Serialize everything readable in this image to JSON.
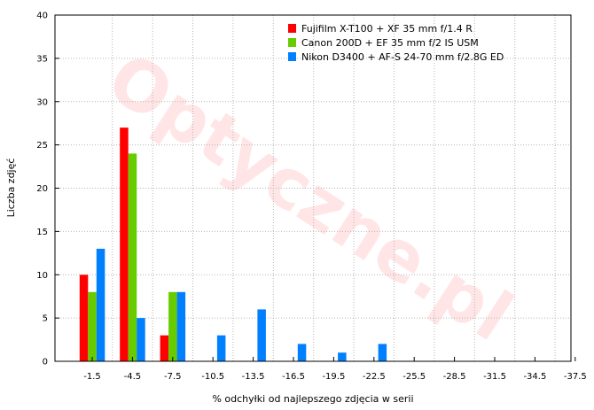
{
  "watermark": {
    "text": "Optyczne.pl"
  },
  "chart_data": {
    "type": "bar",
    "categories": [
      "-1.5",
      "-4.5",
      "-7.5",
      "-10.5",
      "-13.5",
      "-16.5",
      "-19.5",
      "-22.5",
      "-25.5",
      "-28.5",
      "-31.5",
      "-34.5",
      "-37.5"
    ],
    "series": [
      {
        "name": "Fujifilm X-T100 + XF 35 mm f/1.4 R",
        "color": "#ff0000",
        "values": [
          10,
          27,
          3,
          0,
          0,
          0,
          0,
          0,
          0,
          0,
          0,
          0,
          0
        ]
      },
      {
        "name": "Canon 200D + EF 35 mm f/2 IS USM",
        "color": "#66cc00",
        "values": [
          8,
          24,
          8,
          0,
          0,
          0,
          0,
          0,
          0,
          0,
          0,
          0,
          0
        ]
      },
      {
        "name": "Nikon D3400 + AF-S 24-70 mm f/2.8G ED",
        "color": "#0080ff",
        "values": [
          13,
          5,
          8,
          3,
          6,
          2,
          1,
          2,
          0,
          0,
          0,
          0,
          0
        ]
      }
    ],
    "xlabel": "% odchyłki od najlepszego zdjęcia w serii",
    "ylabel": "Liczba zdjęć",
    "ylim": [
      0,
      40
    ],
    "yticks": [
      "0",
      "5",
      "10",
      "15",
      "20",
      "25",
      "30",
      "35",
      "40"
    ],
    "grid": true,
    "legend_position": "top-right"
  }
}
